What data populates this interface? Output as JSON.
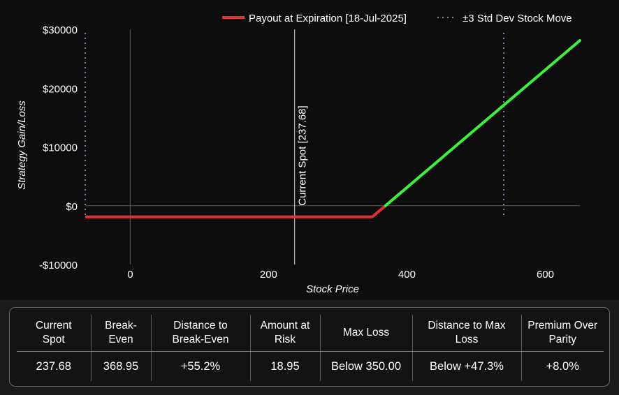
{
  "chart_data": {
    "type": "line",
    "xlabel": "Stock Price",
    "ylabel": "Strategy Gain/Loss",
    "xlim": [
      -65,
      650
    ],
    "ylim": [
      -10000,
      30000
    ],
    "x_ticks": [
      0,
      200,
      400,
      600
    ],
    "x_tick_labels": [
      "0",
      "200",
      "400",
      "600"
    ],
    "y_ticks": [
      -10000,
      0,
      10000,
      20000,
      30000
    ],
    "y_tick_labels": [
      "-$10000",
      "$0",
      "$10000",
      "$20000",
      "$30000"
    ],
    "series": [
      {
        "name": "Payout at Expiration [18-Jul-2025]",
        "x": [
          -65,
          350,
          650
        ],
        "y": [
          -1895,
          -1895,
          28105
        ],
        "loss_color": "#e03131",
        "gain_color": "#3ef03e"
      }
    ],
    "std_dev_lines": {
      "name": "±3 Std Dev Stock Move",
      "x": [
        -65,
        540
      ],
      "color": "#a8a8e8"
    },
    "current_spot": {
      "x": 237.68,
      "label": "Current Spot [237.68]"
    },
    "grid_x_lines": [
      0
    ],
    "zero_line": 0,
    "legend_position": "top-right"
  },
  "stats": {
    "headers": [
      [
        "Current",
        "Spot"
      ],
      [
        "Break-",
        "Even"
      ],
      [
        "Distance to",
        "Break-Even"
      ],
      [
        "Amount at",
        "Risk"
      ],
      [
        "Max Loss"
      ],
      [
        "Distance to Max",
        "Loss"
      ],
      [
        "Premium Over",
        "Parity"
      ]
    ],
    "values": [
      "237.68",
      "368.95",
      "+55.2%",
      "18.95",
      "Below 350.00",
      "Below +47.3%",
      "+8.0%"
    ]
  }
}
